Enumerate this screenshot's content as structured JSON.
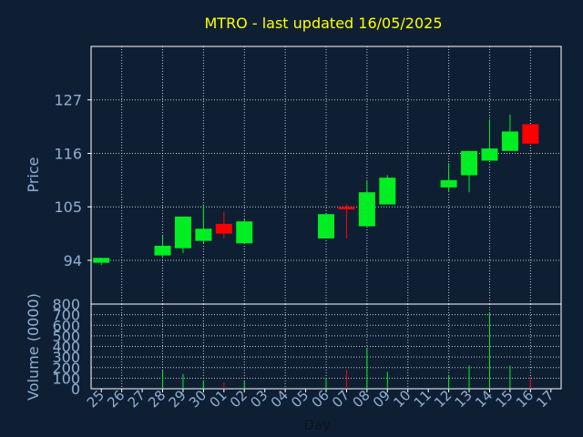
{
  "chart_data": {
    "type": "candlestick",
    "title": "MTRO - last updated 16/05/2025",
    "xlabel": "Day",
    "ylabel": "Price",
    "volume_label": "Volume (0000)",
    "x_ticks": [
      "25",
      "26",
      "27",
      "28",
      "29",
      "30",
      "01",
      "02",
      "03",
      "04",
      "05",
      "06",
      "07",
      "08",
      "09",
      "10",
      "11",
      "12",
      "13",
      "14",
      "15",
      "16",
      "17"
    ],
    "price_ticks": [
      94,
      105,
      116,
      127
    ],
    "price_range": [
      85,
      138
    ],
    "volume_ticks": [
      0,
      100,
      200,
      300,
      400,
      500,
      600,
      700,
      800
    ],
    "volume_range": [
      0,
      800
    ],
    "grid": true,
    "colors": {
      "background": "#0f1f33",
      "title": "#ffff00",
      "axis_text": "#8fb0d4",
      "up": "#00ee22",
      "down": "#ff0000",
      "grid": "#ffffff"
    },
    "candles": [
      {
        "day": "25",
        "open": 93.5,
        "high": 94.5,
        "low": 93.0,
        "close": 94.5,
        "volume": 0
      },
      {
        "day": "28",
        "open": 95.0,
        "high": 99.0,
        "low": 94.5,
        "close": 97.0,
        "volume": 170
      },
      {
        "day": "29",
        "open": 96.5,
        "high": 103.0,
        "low": 95.5,
        "close": 103.0,
        "volume": 140
      },
      {
        "day": "30",
        "open": 98.0,
        "high": 105.5,
        "low": 97.5,
        "close": 100.5,
        "volume": 80
      },
      {
        "day": "01",
        "open": 101.5,
        "high": 104.0,
        "low": 98.5,
        "close": 99.5,
        "volume": 60
      },
      {
        "day": "02",
        "open": 97.5,
        "high": 102.5,
        "low": 97.5,
        "close": 102.0,
        "volume": 70
      },
      {
        "day": "06",
        "open": 98.5,
        "high": 103.5,
        "low": 98.5,
        "close": 103.5,
        "volume": 100
      },
      {
        "day": "07",
        "open": 105.0,
        "high": 105.5,
        "low": 98.5,
        "close": 104.5,
        "volume": 180
      },
      {
        "day": "08",
        "open": 101.0,
        "high": 110.5,
        "low": 101.0,
        "close": 108.0,
        "volume": 380
      },
      {
        "day": "09",
        "open": 105.5,
        "high": 111.5,
        "low": 105.5,
        "close": 111.0,
        "volume": 160
      },
      {
        "day": "12",
        "open": 109.0,
        "high": 114.0,
        "low": 108.0,
        "close": 110.5,
        "volume": 130
      },
      {
        "day": "13",
        "open": 111.5,
        "high": 116.5,
        "low": 108.0,
        "close": 116.5,
        "volume": 220
      },
      {
        "day": "14",
        "open": 114.5,
        "high": 123.0,
        "low": 114.5,
        "close": 117.0,
        "volume": 720
      },
      {
        "day": "15",
        "open": 116.5,
        "high": 124.0,
        "low": 116.5,
        "close": 120.5,
        "volume": 220
      },
      {
        "day": "16",
        "open": 122.0,
        "high": 122.0,
        "low": 118.0,
        "close": 118.0,
        "volume": 110
      }
    ]
  }
}
